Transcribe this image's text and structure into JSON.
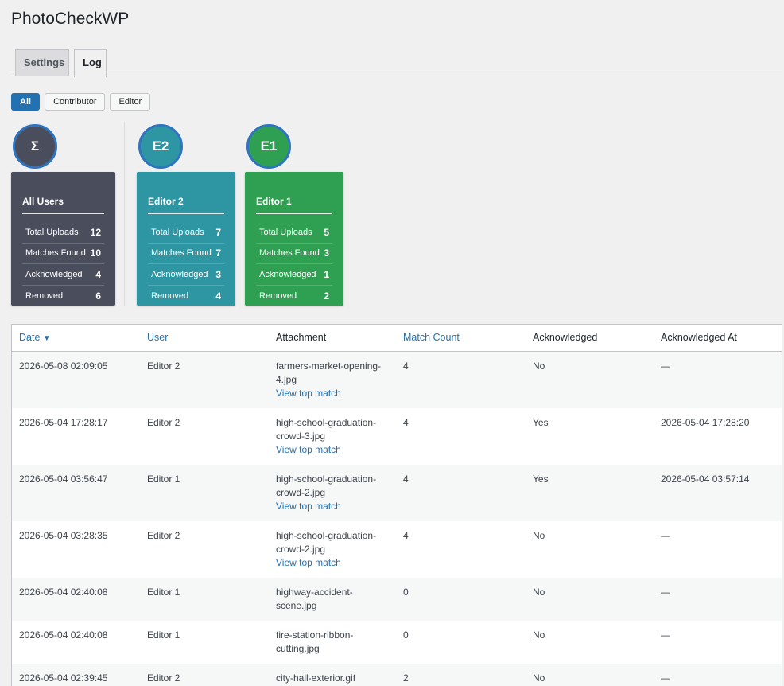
{
  "title": "PhotoCheckWP",
  "tabs": [
    "Settings",
    "Log"
  ],
  "filters": [
    "All",
    "Contributor",
    "Editor"
  ],
  "cards": [
    {
      "avatar": "Σ",
      "name": "All Users",
      "stats": [
        [
          "Total Uploads",
          "12"
        ],
        [
          "Matches Found",
          "10"
        ],
        [
          "Acknowledged",
          "4"
        ],
        [
          "Removed",
          "6"
        ]
      ]
    },
    {
      "avatar": "E2",
      "name": "Editor 2",
      "stats": [
        [
          "Total Uploads",
          "7"
        ],
        [
          "Matches Found",
          "7"
        ],
        [
          "Acknowledged",
          "3"
        ],
        [
          "Removed",
          "4"
        ]
      ]
    },
    {
      "avatar": "E1",
      "name": "Editor 1",
      "stats": [
        [
          "Total Uploads",
          "5"
        ],
        [
          "Matches Found",
          "3"
        ],
        [
          "Acknowledged",
          "1"
        ],
        [
          "Removed",
          "2"
        ]
      ]
    }
  ],
  "colors": {
    "all": "#4a4d5c",
    "e2": "#2e96a3",
    "e1": "#2fa052",
    "accent": "#2271b1"
  },
  "table": {
    "headers": [
      "Date",
      "User",
      "Attachment",
      "Match Count",
      "Acknowledged",
      "Acknowledged At"
    ],
    "sort_arrow": "▼",
    "link_text": "View top match",
    "rows": [
      {
        "date": "2026-05-08 02:09:05",
        "user": "Editor 2",
        "att1": "farmers-market-opening-",
        "att2": "4.jpg",
        "att_link": false,
        "top": true,
        "count": "4",
        "ack": "No",
        "ack_at": "—"
      },
      {
        "date": "2026-05-04 17:28:17",
        "user": "Editor 2",
        "att1": "high-school-graduation-",
        "att2": "crowd-3.jpg",
        "att_link": true,
        "top": true,
        "count": "4",
        "ack": "Yes",
        "ack_at": "2026-05-04 17:28:20"
      },
      {
        "date": "2026-05-04 03:56:47",
        "user": "Editor 1",
        "att1": "high-school-graduation-",
        "att2": "crowd-2.jpg",
        "att_link": true,
        "top": true,
        "count": "4",
        "ack": "Yes",
        "ack_at": "2026-05-04 03:57:14"
      },
      {
        "date": "2026-05-04 03:28:35",
        "user": "Editor 2",
        "att1": "high-school-graduation-",
        "att2": "crowd-2.jpg",
        "att_link": false,
        "top": true,
        "count": "4",
        "ack": "No",
        "ack_at": "—"
      },
      {
        "date": "2026-05-04 02:40:08",
        "user": "Editor 1",
        "att1": "highway-accident-",
        "att2": "scene.jpg",
        "att_link": true,
        "top": false,
        "count": "0",
        "ack": "No",
        "ack_at": "—"
      },
      {
        "date": "2026-05-04 02:40:08",
        "user": "Editor 1",
        "att1": "fire-station-ribbon-",
        "att2": "cutting.jpg",
        "att_link": true,
        "top": false,
        "count": "0",
        "ack": "No",
        "ack_at": "—"
      },
      {
        "date": "2026-05-04 02:39:45",
        "user": "Editor 2",
        "att1": "city-hall-exterior.gif",
        "att2": "",
        "att_link": false,
        "top": true,
        "count": "2",
        "ack": "No",
        "ack_at": "—"
      }
    ]
  }
}
